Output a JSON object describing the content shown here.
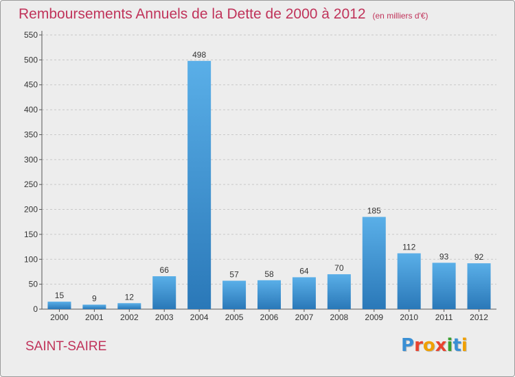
{
  "title": "Remboursements Annuels de la Dette de 2000 à 2012",
  "subtitle": "(en milliers d'€)",
  "town": "SAINT-SAIRE",
  "logo": {
    "text": "Proxiti",
    "letters": [
      {
        "ch": "P",
        "color": "#3a8fd4"
      },
      {
        "ch": "r",
        "color": "#e8432f"
      },
      {
        "ch": "o",
        "color": "#f0a000"
      },
      {
        "ch": "x",
        "color": "#e8432f"
      },
      {
        "ch": "i",
        "color": "#3aa02f"
      },
      {
        "ch": "t",
        "color": "#3a8fd4"
      },
      {
        "ch": "i",
        "color": "#f0a000"
      }
    ]
  },
  "colors": {
    "title": "#c0335a",
    "bar_top": "#5aafe8",
    "bar_bottom": "#2a78b8",
    "grid": "#c8c8c8"
  },
  "chart_data": {
    "type": "bar",
    "categories": [
      "2000",
      "2001",
      "2002",
      "2003",
      "2004",
      "2005",
      "2006",
      "2007",
      "2008",
      "2009",
      "2010",
      "2011",
      "2012"
    ],
    "values": [
      15,
      9,
      12,
      66,
      498,
      57,
      58,
      64,
      70,
      185,
      112,
      93,
      92
    ],
    "ylim": [
      0,
      550
    ],
    "yticks": [
      0,
      50,
      100,
      150,
      200,
      250,
      300,
      350,
      400,
      450,
      500,
      550
    ],
    "grid": true,
    "data_labels": true
  }
}
